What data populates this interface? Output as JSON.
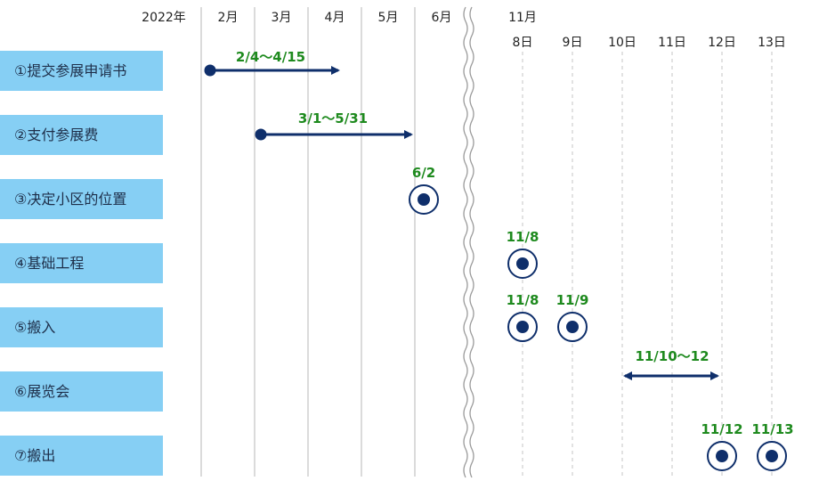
{
  "colors": {
    "row_fill": "#86cff4",
    "arrow": "#0f2f6b",
    "annotation": "#1e8a1e",
    "grid": "#cfcfcf"
  },
  "left_header": {
    "year": "2022年",
    "months": [
      "2月",
      "3月",
      "4月",
      "5月",
      "6月"
    ]
  },
  "right_header": {
    "month": "11月",
    "days": [
      "8日",
      "9日",
      "10日",
      "11日",
      "12日",
      "13日"
    ]
  },
  "tasks": [
    {
      "label": "①提交参展申请书",
      "mark": {
        "kind": "range",
        "text": "2/4〜4/15"
      }
    },
    {
      "label": "②支付参展费",
      "mark": {
        "kind": "range",
        "text": "3/1〜5/31"
      }
    },
    {
      "label": "③决定小区的位置",
      "mark": {
        "kind": "point",
        "texts": [
          "6/2"
        ]
      }
    },
    {
      "label": "④基础工程",
      "mark": {
        "kind": "point",
        "texts": [
          "11/8"
        ]
      }
    },
    {
      "label": "⑤搬入",
      "mark": {
        "kind": "point",
        "texts": [
          "11/8",
          "11/9"
        ]
      }
    },
    {
      "label": "⑥展览会",
      "mark": {
        "kind": "double",
        "text": "11/10〜12"
      }
    },
    {
      "label": "⑦搬出",
      "mark": {
        "kind": "point",
        "texts": [
          "11/12",
          "11/13"
        ]
      }
    }
  ]
}
